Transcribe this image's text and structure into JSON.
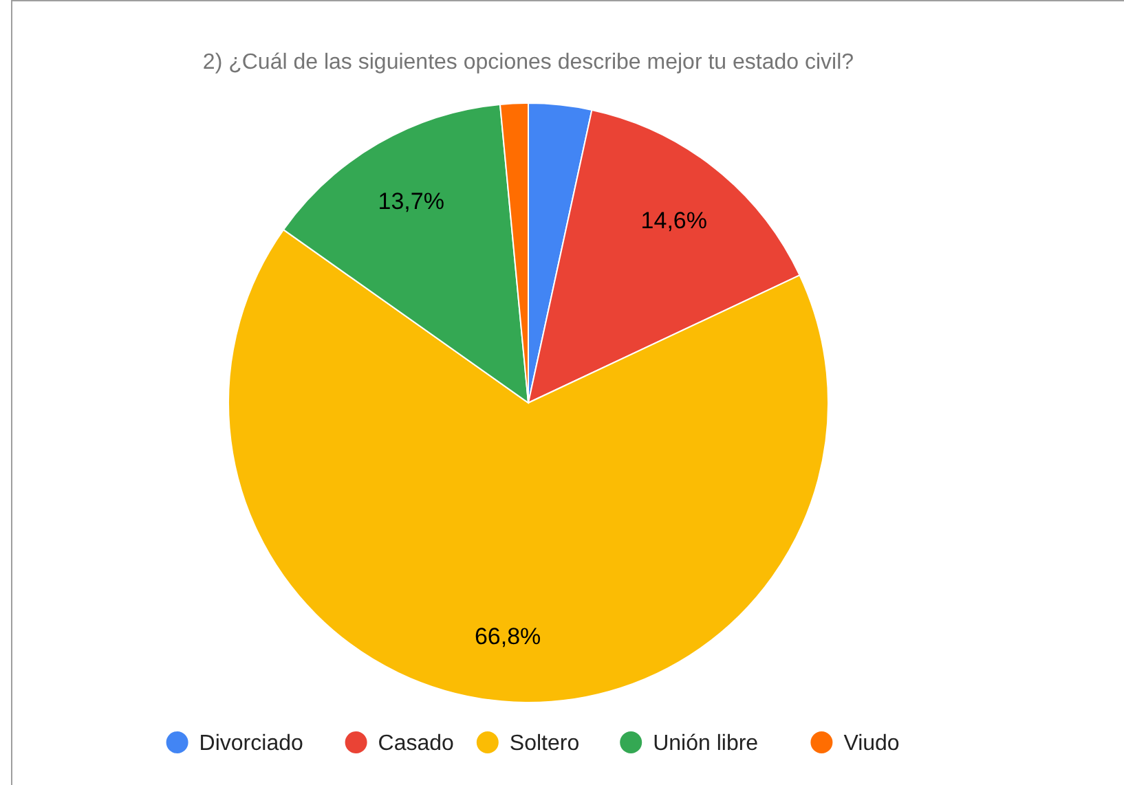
{
  "chart_data": {
    "type": "pie",
    "title": "2) ¿Cuál de las siguientes opciones describe mejor tu estado civil?",
    "categories": [
      "Divorciado",
      "Casado",
      "Soltero",
      "Unión libre",
      "Viudo"
    ],
    "values": [
      3.4,
      14.6,
      66.8,
      13.7,
      1.5
    ],
    "value_labels": [
      null,
      "14,6%",
      "66,8%",
      "13,7%",
      null
    ],
    "colors": [
      "#4285f4",
      "#ea4335",
      "#fbbc04",
      "#34a853",
      "#ff6d01"
    ],
    "legend": "bottom"
  }
}
